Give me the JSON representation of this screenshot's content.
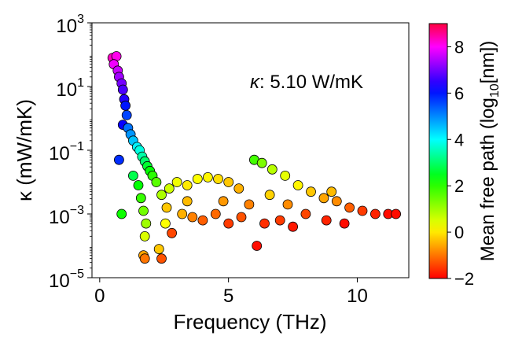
{
  "chart_data": {
    "type": "scatter",
    "title": "",
    "xlabel": "Frequency (THz)",
    "ylabel": "κ (mW/mK)",
    "xlim": [
      -0.3,
      12.0
    ],
    "ylim_log10": [
      -5,
      3
    ],
    "y_scale": "log",
    "grid": false,
    "x_ticks": [
      {
        "value": 0,
        "label": "0"
      },
      {
        "value": 5,
        "label": "5"
      },
      {
        "value": 10,
        "label": "10"
      }
    ],
    "y_ticks": [
      {
        "exp": 3,
        "base": "10",
        "sup": "3"
      },
      {
        "exp": 1,
        "base": "10",
        "sup": "1"
      },
      {
        "exp": -1,
        "base": "10",
        "sup": "−1"
      },
      {
        "exp": -3,
        "base": "10",
        "sup": "−3"
      },
      {
        "exp": -5,
        "base": "10",
        "sup": "−5"
      }
    ],
    "annotation": {
      "symbol": "κ",
      "text": ": 5.10 W/mK"
    },
    "colorbar": {
      "label_main": "Mean free path (log",
      "label_sub": "10",
      "label_end": "[nm])",
      "range": [
        -2,
        9
      ],
      "ticks": [
        {
          "value": -2,
          "label": "−2"
        },
        {
          "value": 0,
          "label": "0"
        },
        {
          "value": 2,
          "label": "2"
        },
        {
          "value": 4,
          "label": "4"
        },
        {
          "value": 6,
          "label": "6"
        },
        {
          "value": 8,
          "label": "8"
        }
      ],
      "colormap": "hsv-like: red(-2) → yellow(0) → green(2) → cyan(4) → blue(6) → magenta(8) → red(9)"
    },
    "marker": {
      "edge_color": "#000000"
    },
    "points": [
      {
        "x": 0.5,
        "log10_kappa": 1.9,
        "mfp": 8.3
      },
      {
        "x": 0.65,
        "log10_kappa": 1.95,
        "mfp": 8.1
      },
      {
        "x": 0.55,
        "log10_kappa": 1.7,
        "mfp": 7.9
      },
      {
        "x": 0.7,
        "log10_kappa": 1.5,
        "mfp": 7.6
      },
      {
        "x": 0.75,
        "log10_kappa": 1.3,
        "mfp": 7.3
      },
      {
        "x": 0.85,
        "log10_kappa": 1.1,
        "mfp": 7.0
      },
      {
        "x": 0.9,
        "log10_kappa": 0.9,
        "mfp": 6.7
      },
      {
        "x": 0.95,
        "log10_kappa": 0.6,
        "mfp": 6.4
      },
      {
        "x": 1.0,
        "log10_kappa": 0.4,
        "mfp": 6.0
      },
      {
        "x": 1.05,
        "log10_kappa": 0.1,
        "mfp": 5.6
      },
      {
        "x": 0.9,
        "log10_kappa": -0.2,
        "mfp": 6.2
      },
      {
        "x": 1.1,
        "log10_kappa": -0.3,
        "mfp": 5.2
      },
      {
        "x": 0.75,
        "log10_kappa": -1.3,
        "mfp": 5.8
      },
      {
        "x": 1.2,
        "log10_kappa": -0.5,
        "mfp": 4.9
      },
      {
        "x": 1.3,
        "log10_kappa": -0.7,
        "mfp": 4.5
      },
      {
        "x": 1.45,
        "log10_kappa": -0.9,
        "mfp": 4.1
      },
      {
        "x": 1.55,
        "log10_kappa": -1.0,
        "mfp": 3.8
      },
      {
        "x": 1.65,
        "log10_kappa": -1.2,
        "mfp": 3.4
      },
      {
        "x": 1.75,
        "log10_kappa": -1.35,
        "mfp": 3.0
      },
      {
        "x": 1.85,
        "log10_kappa": -1.5,
        "mfp": 2.6
      },
      {
        "x": 1.95,
        "log10_kappa": -1.65,
        "mfp": 2.3
      },
      {
        "x": 2.05,
        "log10_kappa": -1.8,
        "mfp": 2.0
      },
      {
        "x": 2.2,
        "log10_kappa": -2.0,
        "mfp": 1.6
      },
      {
        "x": 1.3,
        "log10_kappa": -1.8,
        "mfp": 2.8
      },
      {
        "x": 1.5,
        "log10_kappa": -2.1,
        "mfp": 2.3
      },
      {
        "x": 1.6,
        "log10_kappa": -2.5,
        "mfp": 1.9
      },
      {
        "x": 0.85,
        "log10_kappa": -3.0,
        "mfp": 2.2
      },
      {
        "x": 1.7,
        "log10_kappa": -2.9,
        "mfp": 1.4
      },
      {
        "x": 1.8,
        "log10_kappa": -3.3,
        "mfp": 1.0
      },
      {
        "x": 1.75,
        "log10_kappa": -3.7,
        "mfp": 0.5
      },
      {
        "x": 1.7,
        "log10_kappa": -4.3,
        "mfp": -0.6
      },
      {
        "x": 1.75,
        "log10_kappa": -4.4,
        "mfp": -1.0
      },
      {
        "x": 2.3,
        "log10_kappa": -4.1,
        "mfp": -0.3
      },
      {
        "x": 2.4,
        "log10_kappa": -4.4,
        "mfp": -1.3
      },
      {
        "x": 2.55,
        "log10_kappa": -3.3,
        "mfp": 0.2
      },
      {
        "x": 2.4,
        "log10_kappa": -2.4,
        "mfp": 0.9
      },
      {
        "x": 2.7,
        "log10_kappa": -2.2,
        "mfp": 0.6
      },
      {
        "x": 3.0,
        "log10_kappa": -2.0,
        "mfp": 0.3
      },
      {
        "x": 3.4,
        "log10_kappa": -2.1,
        "mfp": 0.0
      },
      {
        "x": 3.8,
        "log10_kappa": -1.9,
        "mfp": 0.2
      },
      {
        "x": 4.2,
        "log10_kappa": -1.85,
        "mfp": 0.1
      },
      {
        "x": 4.6,
        "log10_kappa": -1.9,
        "mfp": -0.1
      },
      {
        "x": 5.0,
        "log10_kappa": -2.0,
        "mfp": -0.3
      },
      {
        "x": 5.4,
        "log10_kappa": -2.2,
        "mfp": -0.5
      },
      {
        "x": 6.0,
        "log10_kappa": -1.3,
        "mfp": 1.8
      },
      {
        "x": 6.3,
        "log10_kappa": -1.4,
        "mfp": 1.3
      },
      {
        "x": 6.7,
        "log10_kappa": -1.6,
        "mfp": 0.8
      },
      {
        "x": 7.2,
        "log10_kappa": -1.8,
        "mfp": 0.4
      },
      {
        "x": 7.7,
        "log10_kappa": -2.1,
        "mfp": 0.1
      },
      {
        "x": 8.2,
        "log10_kappa": -2.3,
        "mfp": -0.3
      },
      {
        "x": 8.7,
        "log10_kappa": -2.5,
        "mfp": -0.6
      },
      {
        "x": 9.2,
        "log10_kappa": -2.6,
        "mfp": -0.8
      },
      {
        "x": 9.7,
        "log10_kappa": -2.8,
        "mfp": -1.2
      },
      {
        "x": 10.2,
        "log10_kappa": -2.9,
        "mfp": -1.5
      },
      {
        "x": 10.7,
        "log10_kappa": -3.0,
        "mfp": -1.7
      },
      {
        "x": 11.2,
        "log10_kappa": -3.0,
        "mfp": -1.9
      },
      {
        "x": 3.2,
        "log10_kappa": -3.0,
        "mfp": -0.5
      },
      {
        "x": 3.6,
        "log10_kappa": -3.1,
        "mfp": -0.9
      },
      {
        "x": 4.0,
        "log10_kappa": -3.2,
        "mfp": -1.2
      },
      {
        "x": 4.5,
        "log10_kappa": -3.0,
        "mfp": -1.1
      },
      {
        "x": 5.0,
        "log10_kappa": -3.3,
        "mfp": -1.5
      },
      {
        "x": 5.5,
        "log10_kappa": -3.1,
        "mfp": -1.3
      },
      {
        "x": 6.1,
        "log10_kappa": -4.0,
        "mfp": -1.9
      },
      {
        "x": 6.4,
        "log10_kappa": -3.3,
        "mfp": -1.6
      },
      {
        "x": 7.0,
        "log10_kappa": -3.2,
        "mfp": -1.5
      },
      {
        "x": 7.5,
        "log10_kappa": -3.4,
        "mfp": -1.8
      },
      {
        "x": 8.0,
        "log10_kappa": -3.0,
        "mfp": -1.4
      },
      {
        "x": 8.8,
        "log10_kappa": -3.2,
        "mfp": -1.7
      },
      {
        "x": 9.0,
        "log10_kappa": -2.3,
        "mfp": -0.4
      },
      {
        "x": 9.5,
        "log10_kappa": -3.3,
        "mfp": -1.9
      },
      {
        "x": 2.8,
        "log10_kappa": -3.6,
        "mfp": -1.4
      },
      {
        "x": 2.6,
        "log10_kappa": -2.8,
        "mfp": -0.3
      },
      {
        "x": 3.4,
        "log10_kappa": -2.6,
        "mfp": -0.4
      },
      {
        "x": 4.8,
        "log10_kappa": -2.6,
        "mfp": -0.7
      },
      {
        "x": 5.8,
        "log10_kappa": -2.7,
        "mfp": -0.9
      },
      {
        "x": 6.6,
        "log10_kappa": -2.4,
        "mfp": -0.2
      },
      {
        "x": 7.3,
        "log10_kappa": -2.7,
        "mfp": -0.8
      },
      {
        "x": 11.5,
        "log10_kappa": -3.0,
        "mfp": -1.9
      }
    ]
  }
}
